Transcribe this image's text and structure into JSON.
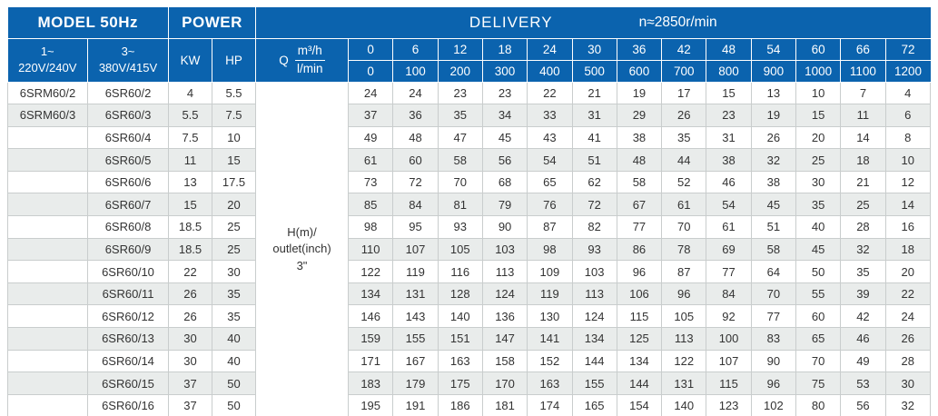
{
  "colors": {
    "header_blue": "#0b63ae",
    "stripe_gray": "#e9eceb",
    "cell_border": "#c9cdcd",
    "header_text": "#ffffff",
    "body_text": "#333333"
  },
  "header": {
    "model_title": "MODEL 50Hz",
    "power_title": "POWER",
    "delivery_title": "DELIVERY",
    "speed": "n≈2850r/min",
    "phase1_line1": "1~",
    "phase1_line2": "220V/240V",
    "phase3_line1": "3~",
    "phase3_line2": "380V/415V",
    "kw_label": "KW",
    "hp_label": "HP",
    "q_label": "Q",
    "q_unit_top": "m³/h",
    "q_unit_bottom": "l/min"
  },
  "delivery": {
    "flow_m3h": [
      "0",
      "6",
      "12",
      "18",
      "24",
      "30",
      "36",
      "42",
      "48",
      "54",
      "60",
      "66",
      "72"
    ],
    "flow_lmin": [
      "0",
      "100",
      "200",
      "300",
      "400",
      "500",
      "600",
      "700",
      "800",
      "900",
      "1000",
      "1100",
      "1200"
    ]
  },
  "h_column_label": [
    "H(m)/",
    "outlet(inch)",
    "3\""
  ],
  "rows": [
    {
      "model_1ph": "6SRM60/2",
      "model_3ph": "6SR60/2",
      "kw": "4",
      "hp": "5.5",
      "head": [
        24,
        24,
        23,
        23,
        22,
        21,
        19,
        17,
        15,
        13,
        10,
        7,
        4
      ]
    },
    {
      "model_1ph": "6SRM60/3",
      "model_3ph": "6SR60/3",
      "kw": "5.5",
      "hp": "7.5",
      "head": [
        37,
        36,
        35,
        34,
        33,
        31,
        29,
        26,
        23,
        19,
        15,
        11,
        6
      ]
    },
    {
      "model_1ph": "",
      "model_3ph": "6SR60/4",
      "kw": "7.5",
      "hp": "10",
      "head": [
        49,
        48,
        47,
        45,
        43,
        41,
        38,
        35,
        31,
        26,
        20,
        14,
        8
      ]
    },
    {
      "model_1ph": "",
      "model_3ph": "6SR60/5",
      "kw": "11",
      "hp": "15",
      "head": [
        61,
        60,
        58,
        56,
        54,
        51,
        48,
        44,
        38,
        32,
        25,
        18,
        10
      ]
    },
    {
      "model_1ph": "",
      "model_3ph": "6SR60/6",
      "kw": "13",
      "hp": "17.5",
      "head": [
        73,
        72,
        70,
        68,
        65,
        62,
        58,
        52,
        46,
        38,
        30,
        21,
        12
      ]
    },
    {
      "model_1ph": "",
      "model_3ph": "6SR60/7",
      "kw": "15",
      "hp": "20",
      "head": [
        85,
        84,
        81,
        79,
        76,
        72,
        67,
        61,
        54,
        45,
        35,
        25,
        14
      ]
    },
    {
      "model_1ph": "",
      "model_3ph": "6SR60/8",
      "kw": "18.5",
      "hp": "25",
      "head": [
        98,
        95,
        93,
        90,
        87,
        82,
        77,
        70,
        61,
        51,
        40,
        28,
        16
      ]
    },
    {
      "model_1ph": "",
      "model_3ph": "6SR60/9",
      "kw": "18.5",
      "hp": "25",
      "head": [
        110,
        107,
        105,
        103,
        98,
        93,
        86,
        78,
        69,
        58,
        45,
        32,
        18
      ]
    },
    {
      "model_1ph": "",
      "model_3ph": "6SR60/10",
      "kw": "22",
      "hp": "30",
      "head": [
        122,
        119,
        116,
        113,
        109,
        103,
        96,
        87,
        77,
        64,
        50,
        35,
        20
      ]
    },
    {
      "model_1ph": "",
      "model_3ph": "6SR60/11",
      "kw": "26",
      "hp": "35",
      "head": [
        134,
        131,
        128,
        124,
        119,
        113,
        106,
        96,
        84,
        70,
        55,
        39,
        22
      ]
    },
    {
      "model_1ph": "",
      "model_3ph": "6SR60/12",
      "kw": "26",
      "hp": "35",
      "head": [
        146,
        143,
        140,
        136,
        130,
        124,
        115,
        105,
        92,
        77,
        60,
        42,
        24
      ]
    },
    {
      "model_1ph": "",
      "model_3ph": "6SR60/13",
      "kw": "30",
      "hp": "40",
      "head": [
        159,
        155,
        151,
        147,
        141,
        134,
        125,
        113,
        100,
        83,
        65,
        46,
        26
      ]
    },
    {
      "model_1ph": "",
      "model_3ph": "6SR60/14",
      "kw": "30",
      "hp": "40",
      "head": [
        171,
        167,
        163,
        158,
        152,
        144,
        134,
        122,
        107,
        90,
        70,
        49,
        28
      ]
    },
    {
      "model_1ph": "",
      "model_3ph": "6SR60/15",
      "kw": "37",
      "hp": "50",
      "head": [
        183,
        179,
        175,
        170,
        163,
        155,
        144,
        131,
        115,
        96,
        75,
        53,
        30
      ]
    },
    {
      "model_1ph": "",
      "model_3ph": "6SR60/16",
      "kw": "37",
      "hp": "50",
      "head": [
        195,
        191,
        186,
        181,
        174,
        165,
        154,
        140,
        123,
        102,
        80,
        56,
        32
      ]
    }
  ]
}
